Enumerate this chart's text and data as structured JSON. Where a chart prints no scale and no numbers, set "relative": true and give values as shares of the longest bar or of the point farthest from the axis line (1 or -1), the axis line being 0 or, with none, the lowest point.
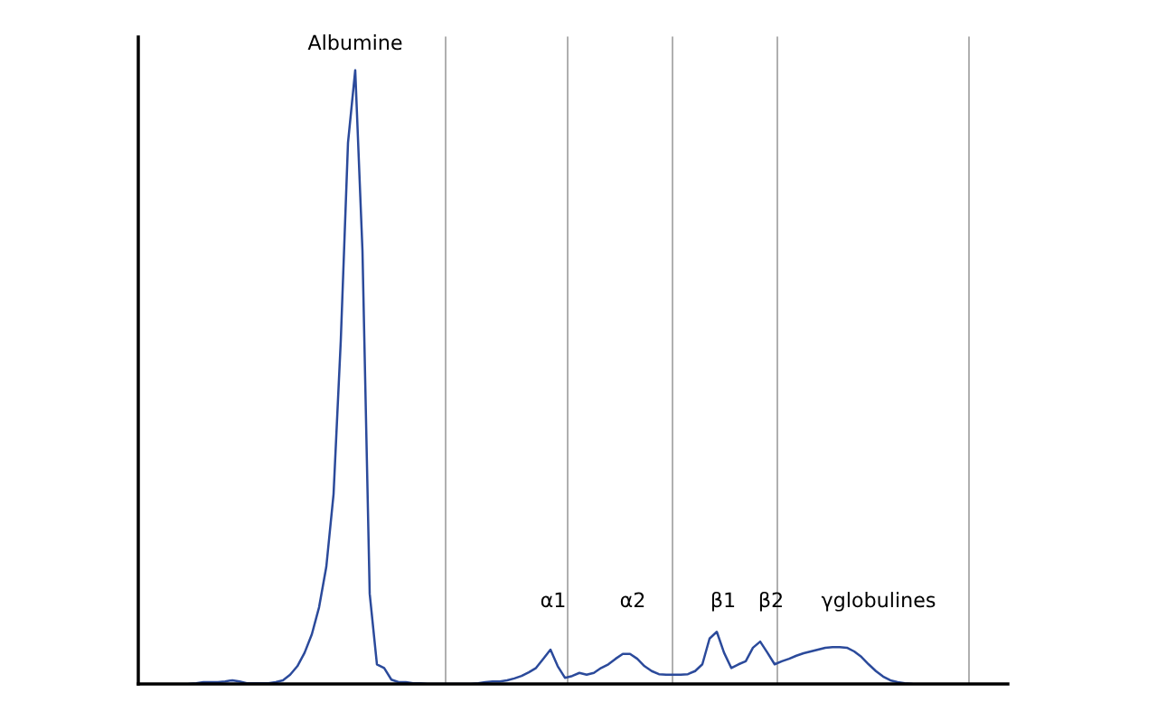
{
  "chart_data": {
    "type": "line",
    "relative": true,
    "color": "#2b4a9b",
    "categories": [
      null,
      null,
      null,
      null,
      null,
      null,
      null,
      null,
      null,
      null,
      null,
      null,
      null,
      null,
      null,
      null,
      null,
      null,
      null,
      null,
      null,
      null,
      null,
      null,
      null,
      null,
      null,
      null,
      null,
      null,
      null,
      null,
      null,
      null,
      null,
      null,
      null,
      null,
      null,
      null,
      null,
      null,
      null,
      null,
      null,
      null,
      null,
      null,
      null,
      null,
      null,
      null,
      null,
      null,
      null,
      null,
      null,
      null,
      null,
      null,
      null,
      null,
      null,
      null,
      null,
      null,
      null,
      null,
      null,
      null,
      null,
      null,
      null,
      null,
      null,
      null,
      null,
      null,
      null,
      null,
      null,
      null,
      null,
      null,
      null,
      null,
      null,
      null,
      null,
      null,
      null,
      null,
      null,
      null,
      null,
      null,
      null,
      null,
      null,
      null,
      null,
      null,
      null,
      null,
      null,
      null,
      null,
      null,
      null,
      null,
      null,
      null,
      null,
      null,
      null,
      null,
      null,
      null,
      null,
      null,
      null
    ],
    "values": [
      null,
      null,
      null,
      null,
      null,
      null,
      null,
      0,
      0.001,
      0.003,
      0.003,
      0.003,
      0.004,
      0.006,
      0.004,
      0.001,
      0.001,
      0.001,
      0.001,
      0.003,
      0.006,
      0.015,
      0.029,
      0.051,
      0.081,
      0.125,
      0.191,
      0.309,
      0.559,
      0.882,
      1,
      0.706,
      0.147,
      0.032,
      0.026,
      0.007,
      0.003,
      0.003,
      0.001,
      0.001,
      0,
      0,
      0,
      0,
      0,
      0,
      0,
      0.001,
      0.003,
      0.004,
      0.004,
      0.006,
      0.009,
      0.013,
      0.019,
      0.026,
      0.041,
      0.056,
      0.029,
      0.01,
      0.013,
      0.018,
      0.015,
      0.018,
      0.026,
      0.032,
      0.041,
      0.049,
      0.049,
      0.041,
      0.029,
      0.021,
      0.016,
      0.015,
      0.015,
      0.015,
      0.016,
      0.021,
      0.032,
      0.074,
      0.085,
      0.051,
      0.026,
      0.032,
      0.037,
      0.059,
      0.069,
      0.051,
      0.032,
      0.037,
      0.041,
      0.046,
      0.05,
      0.053,
      0.056,
      0.059,
      0.06,
      0.06,
      0.059,
      0.053,
      0.044,
      0.032,
      0.021,
      0.012,
      0.006,
      0.003,
      0.001,
      0,
      null,
      null,
      null,
      null,
      null,
      null,
      null,
      null,
      null,
      null,
      null,
      null,
      null
    ],
    "annotations": [
      "Albumine",
      "α1",
      "α2",
      "β1",
      "β2",
      "γglobulines"
    ]
  }
}
